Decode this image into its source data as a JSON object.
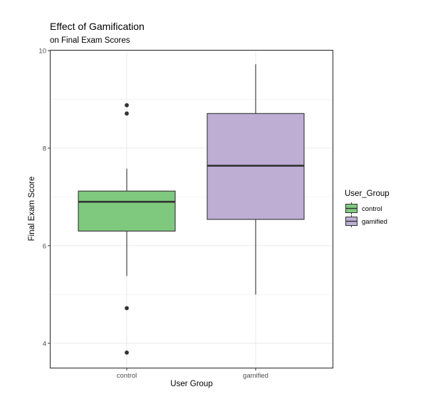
{
  "chart_data": {
    "type": "box",
    "title": "Effect of Gamification",
    "subtitle": "on Final Exam Scores",
    "xlabel": "User Group",
    "ylabel": "Final Exam Score",
    "ylim": [
      3.5,
      10
    ],
    "y_ticks": [
      4,
      6,
      8,
      10
    ],
    "grid": true,
    "categories": [
      "control",
      "gamified"
    ],
    "legend": {
      "title": "User_Group",
      "placement": "right",
      "entries": [
        "control",
        "gamified"
      ]
    },
    "series": [
      {
        "name": "control",
        "color": "#7fc97f",
        "whisker_low": 5.38,
        "q1": 6.3,
        "median": 6.9,
        "q3": 7.12,
        "whisker_high": 7.58,
        "outliers": [
          8.88,
          8.71,
          4.72,
          3.81
        ]
      },
      {
        "name": "gamified",
        "color": "#beaed4",
        "whisker_low": 5.0,
        "q1": 6.54,
        "median": 7.64,
        "q3": 8.71,
        "whisker_high": 9.72,
        "outliers": []
      }
    ]
  }
}
